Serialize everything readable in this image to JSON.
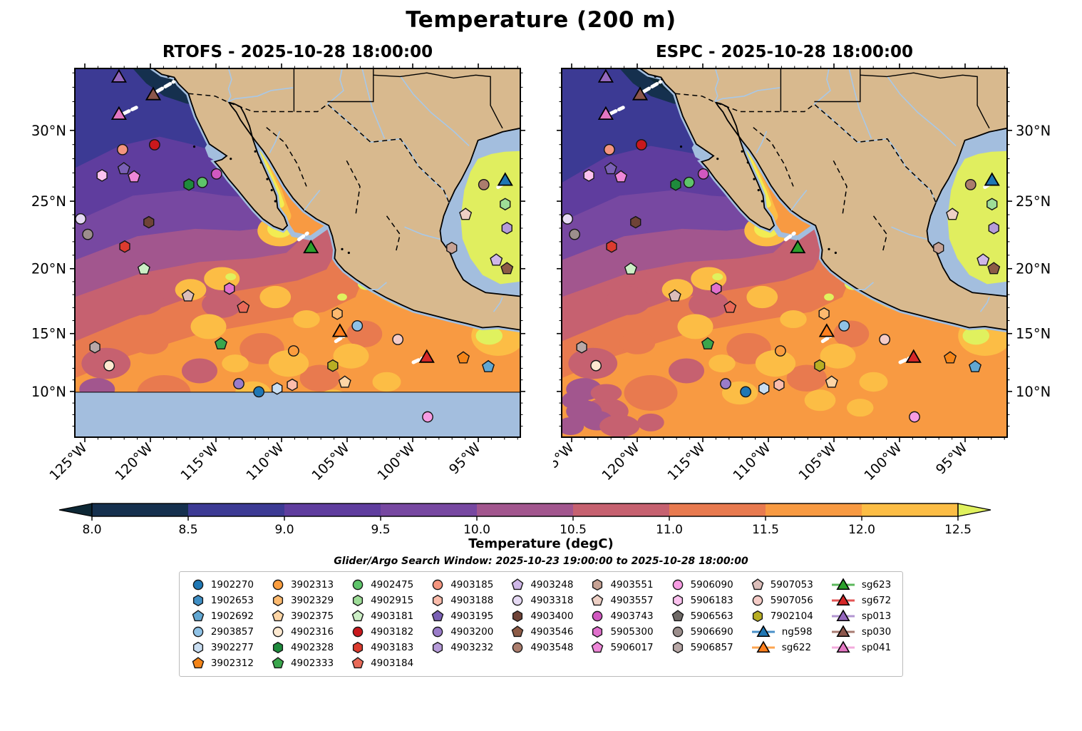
{
  "title": "Temperature (200 m)",
  "panels": [
    {
      "key": "rtofs",
      "title": "RTOFS - 2025-10-28 18:00:00",
      "south_mask": true
    },
    {
      "key": "espc",
      "title": "ESPC - 2025-10-28 18:00:00",
      "south_mask": false
    }
  ],
  "axes": {
    "lon_labels": [
      "125°W",
      "120°W",
      "115°W",
      "110°W",
      "105°W",
      "100°W",
      "95°W"
    ],
    "lon_fx": [
      0.0224,
      0.1696,
      0.3168,
      0.464,
      0.6112,
      0.7584,
      0.9056
    ],
    "lat_labels": [
      "30°N",
      "25°N",
      "20°N",
      "15°N",
      "10°N"
    ],
    "lat_fy": [
      0.168,
      0.36,
      0.543,
      0.719,
      0.876
    ],
    "lat_minor_fy": [
      0.012,
      0.051,
      0.09,
      0.129,
      0.2064,
      0.2448,
      0.2832,
      0.3216,
      0.3966,
      0.4332,
      0.4698,
      0.5064,
      0.5782,
      0.6134,
      0.6486,
      0.6838,
      0.7504,
      0.7818,
      0.8132,
      0.8446,
      0.9074,
      0.9388,
      0.9702
    ]
  },
  "colorbar": {
    "label": "Temperature (degC)",
    "tick_labels": [
      "8.0",
      "8.5",
      "9.0",
      "9.5",
      "10.0",
      "10.5",
      "11.0",
      "11.5",
      "12.0",
      "12.5"
    ],
    "under": "#0d2735",
    "over": "#e0f15e",
    "segments": [
      "#15304e",
      "#3c3a94",
      "#5f3d9e",
      "#7748a1",
      "#a2568e",
      "#c66170",
      "#e87a4f",
      "#f89a42",
      "#fcbd45"
    ]
  },
  "legend": {
    "title": "Glider/Argo Search Window: 2025-10-23 19:00:00 to 2025-10-28 18:00:00",
    "columns": [
      [
        "1902270",
        "1902653",
        "1902692",
        "2903857",
        "3902277",
        "3902312"
      ],
      [
        "3902313",
        "3902329",
        "3902375",
        "4902316",
        "4902328",
        "4902333"
      ],
      [
        "4902475",
        "4902915",
        "4903181",
        "4903182",
        "4903183",
        "4903184"
      ],
      [
        "4903185",
        "4903188",
        "4903195",
        "4903200",
        "4903232"
      ],
      [
        "4903248",
        "4903318",
        "4903400",
        "4903546",
        "4903548"
      ],
      [
        "4903551",
        "4903557",
        "4903743",
        "5905300",
        "5906017"
      ],
      [
        "5906090",
        "5906183",
        "5906563",
        "5906690",
        "5906857"
      ],
      [
        "5907053",
        "5907056",
        "7902104",
        "ng598",
        "sg622"
      ],
      [
        "sg623",
        "sg672",
        "sp013",
        "sp030",
        "sp041"
      ]
    ]
  },
  "features": {
    "1902270": {
      "label": "1902270",
      "shape": "circle",
      "fill": "#1f77b4",
      "fx": 0.413,
      "fy": 0.877
    },
    "1902653": {
      "label": "1902653",
      "shape": "hexagon",
      "fill": "#3f8fc5"
    },
    "1902692": {
      "label": "1902692",
      "shape": "pentagon",
      "fill": "#61a7d2",
      "fx": 0.928,
      "fy": 0.809
    },
    "2903857": {
      "label": "2903857",
      "shape": "circle",
      "fill": "#8fc2e6",
      "fx": 0.634,
      "fy": 0.698
    },
    "3902277": {
      "label": "3902277",
      "shape": "hexagon",
      "fill": "#c9def2",
      "fx": 0.454,
      "fy": 0.868
    },
    "3902312": {
      "label": "3902312",
      "shape": "pentagon",
      "fill": "#f58518",
      "fx": 0.872,
      "fy": 0.785
    },
    "3902313": {
      "label": "3902313",
      "shape": "circle",
      "fill": "#fb9d3e",
      "fx": 0.491,
      "fy": 0.766
    },
    "3902329": {
      "label": "3902329",
      "shape": "hexagon",
      "fill": "#fdba6f",
      "fx": 0.589,
      "fy": 0.665
    },
    "3902375": {
      "label": "3902375",
      "shape": "pentagon",
      "fill": "#fdd5a5",
      "fx": 0.606,
      "fy": 0.851
    },
    "4902316": {
      "label": "4902316",
      "shape": "circle",
      "fill": "#fde9d0",
      "fx": 0.077,
      "fy": 0.806
    },
    "4902328": {
      "label": "4902328",
      "shape": "hexagon",
      "fill": "#1e8b3c",
      "fx": 0.256,
      "fy": 0.315
    },
    "4902333": {
      "label": "4902333",
      "shape": "pentagon",
      "fill": "#3aa64c",
      "fx": 0.328,
      "fy": 0.747
    },
    "4902475": {
      "label": "4902475",
      "shape": "circle",
      "fill": "#5ec46a",
      "fx": 0.286,
      "fy": 0.309
    },
    "4902915": {
      "label": "4902915",
      "shape": "hexagon",
      "fill": "#9edd98",
      "fx": 0.966,
      "fy": 0.368
    },
    "4903181": {
      "label": "4903181",
      "shape": "pentagon",
      "fill": "#ccefc6",
      "fx": 0.155,
      "fy": 0.544
    },
    "4903182": {
      "label": "4903182",
      "shape": "circle",
      "fill": "#c9181d",
      "fx": 0.179,
      "fy": 0.207
    },
    "4903183": {
      "label": "4903183",
      "shape": "hexagon",
      "fill": "#dc3b2e",
      "fx": 0.112,
      "fy": 0.483
    },
    "4903184": {
      "label": "4903184",
      "shape": "pentagon",
      "fill": "#e96a58",
      "fx": 0.378,
      "fy": 0.648
    },
    "4903185": {
      "label": "4903185",
      "shape": "circle",
      "fill": "#f4957f",
      "fx": 0.107,
      "fy": 0.22
    },
    "4903188": {
      "label": "4903188",
      "shape": "hexagon",
      "fill": "#fbbcab",
      "fx": 0.488,
      "fy": 0.858
    },
    "4903195": {
      "label": "4903195",
      "shape": "pentagon",
      "fill": "#7a60b5",
      "fx": 0.11,
      "fy": 0.272
    },
    "4903200": {
      "label": "4903200",
      "shape": "circle",
      "fill": "#9a7cc9",
      "fx": 0.368,
      "fy": 0.855
    },
    "4903232": {
      "label": "4903232",
      "shape": "hexagon",
      "fill": "#b69bd9",
      "fx": 0.97,
      "fy": 0.433
    },
    "4903248": {
      "label": "4903248",
      "shape": "pentagon",
      "fill": "#cfb7e8",
      "fx": 0.946,
      "fy": 0.52
    },
    "4903318": {
      "label": "4903318",
      "shape": "circle",
      "fill": "#e6daf4",
      "fx": 0.013,
      "fy": 0.408
    },
    "4903400": {
      "label": "4903400",
      "shape": "hexagon",
      "fill": "#6f4337",
      "fx": 0.166,
      "fy": 0.417
    },
    "4903546": {
      "label": "4903546",
      "shape": "pentagon",
      "fill": "#8d5b46",
      "fx": 0.97,
      "fy": 0.543
    },
    "4903548": {
      "label": "4903548",
      "shape": "circle",
      "fill": "#ab7d6d",
      "fx": 0.918,
      "fy": 0.315
    },
    "4903551": {
      "label": "4903551",
      "shape": "hexagon",
      "fill": "#c7a294",
      "fx": 0.846,
      "fy": 0.487
    },
    "4903557": {
      "label": "4903557",
      "shape": "pentagon",
      "fill": "#eed0c5",
      "fx": 0.877,
      "fy": 0.396
    },
    "4903743": {
      "label": "4903743",
      "shape": "circle",
      "fill": "#d158c0",
      "fx": 0.318,
      "fy": 0.286
    },
    "5905300": {
      "label": "5905300",
      "shape": "hexagon",
      "fill": "#e170cd",
      "fx": 0.347,
      "fy": 0.597
    },
    "5906017": {
      "label": "5906017",
      "shape": "pentagon",
      "fill": "#ee87d8",
      "fx": 0.133,
      "fy": 0.294
    },
    "5906090": {
      "label": "5906090",
      "shape": "circle",
      "fill": "#f79ce3",
      "fx": 0.792,
      "fy": 0.945
    },
    "5906183": {
      "label": "5906183",
      "shape": "hexagon",
      "fill": "#fcc2ef",
      "fx": 0.061,
      "fy": 0.29
    },
    "5906563": {
      "label": "5906563",
      "shape": "pentagon",
      "fill": "#6f6a67"
    },
    "5906690": {
      "label": "5906690",
      "shape": "circle",
      "fill": "#9c8e8c",
      "fx": 0.029,
      "fy": 0.45
    },
    "5906857": {
      "label": "5906857",
      "shape": "hexagon",
      "fill": "#b8a8a7",
      "fx": 0.045,
      "fy": 0.756
    },
    "5907053": {
      "label": "5907053",
      "shape": "pentagon",
      "fill": "#dcbeba",
      "fx": 0.254,
      "fy": 0.617
    },
    "5907056": {
      "label": "5907056",
      "shape": "circle",
      "fill": "#f5ccc7",
      "fx": 0.725,
      "fy": 0.735
    },
    "7902104": {
      "label": "7902104",
      "shape": "hexagon",
      "fill": "#b8ae23",
      "fx": 0.579,
      "fy": 0.806
    },
    "ng598": {
      "label": "ng598",
      "shape": "triangle",
      "fill": "#1f77b4",
      "line": "#4a90c8",
      "fx": 0.966,
      "fy": 0.303
    },
    "sg622": {
      "label": "sg622",
      "shape": "triangle",
      "fill": "#fd7f1e",
      "line": "#fda550",
      "fx": 0.595,
      "fy": 0.713
    },
    "sg623": {
      "label": "sg623",
      "shape": "triangle",
      "fill": "#2ca02c",
      "line": "#5cb85c",
      "fx": 0.53,
      "fy": 0.486
    },
    "sg672": {
      "label": "sg672",
      "shape": "triangle",
      "fill": "#d62728",
      "line": "#e35555",
      "fx": 0.79,
      "fy": 0.783
    },
    "sp013": {
      "label": "sp013",
      "shape": "triangle",
      "fill": "#9467bd",
      "line": "#b295d2",
      "fx": 0.099,
      "fy": 0.023
    },
    "sp030": {
      "label": "sp030",
      "shape": "triangle",
      "fill": "#8c564b",
      "line": "#a87b72",
      "fx": 0.176,
      "fy": 0.071
    },
    "sp041": {
      "label": "sp041",
      "shape": "triangle",
      "fill": "#e377c2",
      "line": "#f3abdd",
      "fx": 0.099,
      "fy": 0.124
    }
  },
  "map": {
    "colors": {
      "land": "#d8b98e",
      "shelf": "#a3bede",
      "river": "#a8c8e8",
      "mask": "#a3bede",
      "border": "#111111",
      "coast": "#000000",
      "goc_yellow": "#f2ec52",
      "gom_green": "#e0ee5f",
      "bands": {
        "teal": "#0d2735",
        "navy": "#15304e",
        "indigo": "#3c3a94",
        "purple": "#5f3d9e",
        "p2": "#7748a1",
        "mauve": "#a2568e",
        "rose": "#c66170",
        "or1": "#e87a4f",
        "base": "#f89a42",
        "warm": "#fcbd45",
        "hot": "#e0f15e"
      }
    },
    "tracks": [
      [
        0.185,
        0.062,
        0.222,
        0.036
      ],
      [
        0.11,
        0.122,
        0.138,
        0.106
      ],
      [
        0.503,
        0.464,
        0.522,
        0.447
      ],
      [
        0.586,
        0.74,
        0.604,
        0.726
      ],
      [
        0.76,
        0.797,
        0.78,
        0.786
      ],
      [
        0.95,
        0.322,
        0.963,
        0.312
      ]
    ]
  },
  "chart_data": {
    "type": "heatmap",
    "title": "Temperature (200 m)",
    "panels": [
      "RTOFS - 2025-10-28 18:00:00",
      "ESPC - 2025-10-28 18:00:00"
    ],
    "variable": "Temperature (degC)",
    "depth_m": 200,
    "colorbar_levels": [
      8.0,
      8.5,
      9.0,
      9.5,
      10.0,
      10.5,
      11.0,
      11.5,
      12.0,
      12.5
    ],
    "colorbar_extends": "both",
    "lon_range_w": [
      125.8,
      92.0
    ],
    "lat_range_n": [
      6.5,
      34.3
    ],
    "search_window": "2025-10-23 19:00:00 to 2025-10-28 18:00:00",
    "argo_floats": [
      {
        "id": "1902270",
        "lon_w": 111.8,
        "lat_n": 10.1
      },
      {
        "id": "1902653"
      },
      {
        "id": "1902692",
        "lon_w": 94.2,
        "lat_n": 11.8
      },
      {
        "id": "2903857",
        "lon_w": 104.2,
        "lat_n": 14.9
      },
      {
        "id": "3902277",
        "lon_w": 110.4,
        "lat_n": 10.2
      },
      {
        "id": "3902312",
        "lon_w": 96.2,
        "lat_n": 12.5
      },
      {
        "id": "3902313",
        "lon_w": 109.1,
        "lat_n": 13.0
      },
      {
        "id": "3902329",
        "lon_w": 105.8,
        "lat_n": 15.8
      },
      {
        "id": "3902375",
        "lon_w": 105.2,
        "lat_n": 10.6
      },
      {
        "id": "4902316",
        "lon_w": 123.2,
        "lat_n": 11.9
      },
      {
        "id": "4902328",
        "lon_w": 117.1,
        "lat_n": 25.5
      },
      {
        "id": "4902333",
        "lon_w": 114.6,
        "lat_n": 13.5
      },
      {
        "id": "4902475",
        "lon_w": 116.1,
        "lat_n": 25.7
      },
      {
        "id": "4902915",
        "lon_w": 92.9,
        "lat_n": 24.1
      },
      {
        "id": "4903181",
        "lon_w": 120.5,
        "lat_n": 19.2
      },
      {
        "id": "4903182",
        "lon_w": 119.7,
        "lat_n": 28.5
      },
      {
        "id": "4903183",
        "lon_w": 122.0,
        "lat_n": 20.9
      },
      {
        "id": "4903184",
        "lon_w": 112.9,
        "lat_n": 16.3
      },
      {
        "id": "4903185",
        "lon_w": 122.2,
        "lat_n": 28.2
      },
      {
        "id": "4903188",
        "lon_w": 109.2,
        "lat_n": 10.4
      },
      {
        "id": "4903195",
        "lon_w": 122.1,
        "lat_n": 26.7
      },
      {
        "id": "4903200",
        "lon_w": 113.3,
        "lat_n": 10.5
      },
      {
        "id": "4903232",
        "lon_w": 92.8,
        "lat_n": 22.3
      },
      {
        "id": "4903248",
        "lon_w": 93.6,
        "lat_n": 19.8
      },
      {
        "id": "4903318",
        "lon_w": 125.4,
        "lat_n": 23.0
      },
      {
        "id": "4903400",
        "lon_w": 120.2,
        "lat_n": 22.7
      },
      {
        "id": "4903546",
        "lon_w": 92.8,
        "lat_n": 19.2
      },
      {
        "id": "4903548",
        "lon_w": 94.6,
        "lat_n": 25.5
      },
      {
        "id": "4903551",
        "lon_w": 97.0,
        "lat_n": 20.8
      },
      {
        "id": "4903557",
        "lon_w": 96.0,
        "lat_n": 23.3
      },
      {
        "id": "4903743",
        "lon_w": 115.0,
        "lat_n": 26.4
      },
      {
        "id": "5905300",
        "lon_w": 114.0,
        "lat_n": 17.7
      },
      {
        "id": "5906017",
        "lon_w": 121.3,
        "lat_n": 26.1
      },
      {
        "id": "5906090",
        "lon_w": 98.9,
        "lat_n": 8.0
      },
      {
        "id": "5906183",
        "lon_w": 123.7,
        "lat_n": 26.2
      },
      {
        "id": "5906563"
      },
      {
        "id": "5906690",
        "lon_w": 124.8,
        "lat_n": 21.8
      },
      {
        "id": "5906857",
        "lon_w": 124.3,
        "lat_n": 13.3
      },
      {
        "id": "5907053",
        "lon_w": 117.2,
        "lat_n": 17.1
      },
      {
        "id": "5907056",
        "lon_w": 101.2,
        "lat_n": 13.9
      },
      {
        "id": "7902104",
        "lon_w": 106.1,
        "lat_n": 11.9
      }
    ],
    "gliders": [
      {
        "id": "ng598",
        "lon_w": 92.9,
        "lat_n": 25.9
      },
      {
        "id": "sg622",
        "lon_w": 105.6,
        "lat_n": 14.5
      },
      {
        "id": "sg623",
        "lon_w": 107.8,
        "lat_n": 20.8
      },
      {
        "id": "sg672",
        "lon_w": 99.0,
        "lat_n": 12.5
      },
      {
        "id": "sp013",
        "lon_w": 122.4,
        "lat_n": 33.7
      },
      {
        "id": "sp030",
        "lon_w": 119.8,
        "lat_n": 32.3
      },
      {
        "id": "sp041",
        "lon_w": 122.4,
        "lat_n": 30.9
      }
    ]
  }
}
